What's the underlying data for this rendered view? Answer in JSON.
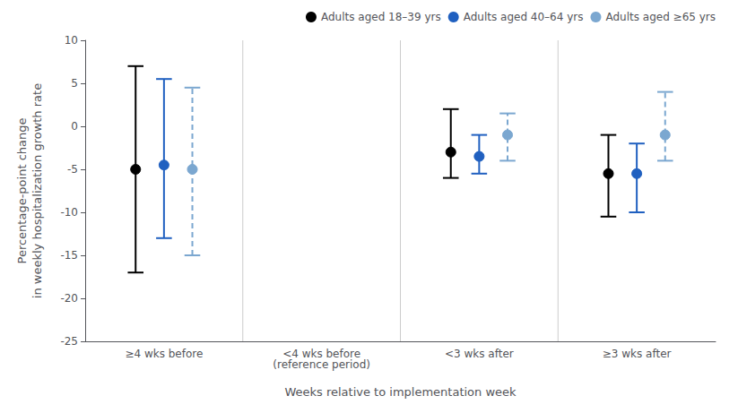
{
  "chart_data": {
    "type": "scatter",
    "xlabel": "Weeks relative to implementation week",
    "ylabel": "Percentage-point change\nin weekly hospitalization growth rate",
    "categories": [
      "≥4 wks before",
      "<4 wks before\n(reference period)",
      "<3 wks after",
      "≥3 wks after"
    ],
    "series": [
      {
        "name": "Adults aged 18–39 yrs",
        "color": "#000000",
        "marker": "circle",
        "line_style": "solid",
        "values": [
          -5.0,
          null,
          -3.0,
          -5.5
        ],
        "ci_low": [
          -17.0,
          null,
          -6.0,
          -10.5
        ],
        "ci_high": [
          7.0,
          null,
          2.0,
          -1.0
        ]
      },
      {
        "name": "Adults aged 40–64 yrs",
        "color": "#2060C0",
        "marker": "circle",
        "line_style": "solid",
        "values": [
          -4.5,
          null,
          -3.5,
          -5.5
        ],
        "ci_low": [
          -13.0,
          null,
          -5.5,
          -10.0
        ],
        "ci_high": [
          5.5,
          null,
          -1.0,
          -2.0
        ]
      },
      {
        "name": "Adults aged ≥65 yrs",
        "color": "#7BA7D0",
        "marker": "circle",
        "line_style": "dashed",
        "values": [
          -5.0,
          null,
          -1.0,
          -1.0
        ],
        "ci_low": [
          -15.0,
          null,
          -4.0,
          -4.0
        ],
        "ci_high": [
          4.5,
          null,
          1.5,
          4.0
        ]
      }
    ],
    "ylim": [
      -25,
      10
    ],
    "yticks": [
      10,
      5,
      0,
      -5,
      -10,
      -15,
      -20,
      -25
    ],
    "legend": "upper right"
  }
}
